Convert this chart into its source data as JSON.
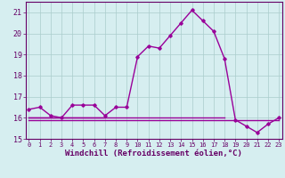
{
  "xlabel": "Windchill (Refroidissement éolien,°C)",
  "hours": [
    0,
    1,
    2,
    3,
    4,
    5,
    6,
    7,
    8,
    9,
    10,
    11,
    12,
    13,
    14,
    15,
    16,
    17,
    18,
    19,
    20,
    21,
    22,
    23
  ],
  "windchill": [
    16.4,
    16.5,
    16.1,
    16.0,
    16.6,
    16.6,
    16.6,
    16.1,
    16.5,
    16.5,
    18.9,
    19.4,
    19.3,
    19.9,
    20.5,
    21.1,
    20.6,
    20.1,
    18.8,
    15.9,
    15.6,
    15.3,
    15.7,
    16.0
  ],
  "line2": [
    15.9,
    15.9,
    15.9,
    15.9,
    15.9,
    15.9,
    15.9,
    15.9,
    15.9,
    15.9,
    15.9,
    15.9,
    15.9,
    15.9,
    15.9,
    15.9,
    15.9,
    15.9,
    15.9,
    15.9,
    15.9,
    15.9,
    15.9,
    15.9
  ],
  "line2_hours": [
    0,
    1,
    2,
    3,
    4,
    5,
    6,
    7,
    8,
    9,
    10,
    11,
    12,
    13,
    14,
    15,
    16,
    17,
    18,
    19,
    20,
    21,
    22,
    23
  ],
  "line3": [
    16.0,
    16.0,
    16.0,
    16.0,
    16.0,
    16.0,
    16.0,
    16.0,
    16.0,
    16.0,
    16.0,
    16.0,
    16.0,
    16.0,
    16.0,
    16.0,
    16.0,
    16.0,
    16.0
  ],
  "line3_hours": [
    0,
    1,
    2,
    3,
    4,
    5,
    6,
    7,
    8,
    9,
    10,
    11,
    12,
    13,
    14,
    15,
    16,
    17,
    18
  ],
  "line4": [
    16.0,
    16.0,
    16.0,
    16.0,
    16.0,
    16.0,
    16.0,
    16.0
  ],
  "line4_hours": [
    0,
    1,
    2,
    3,
    4,
    5,
    6,
    7
  ],
  "ylim": [
    15.0,
    21.5
  ],
  "yticks": [
    15,
    16,
    17,
    18,
    19,
    20,
    21
  ],
  "bg_color": "#d6eef0",
  "line_color": "#990099",
  "grid_color": "#aacccc",
  "label_color": "#660066"
}
